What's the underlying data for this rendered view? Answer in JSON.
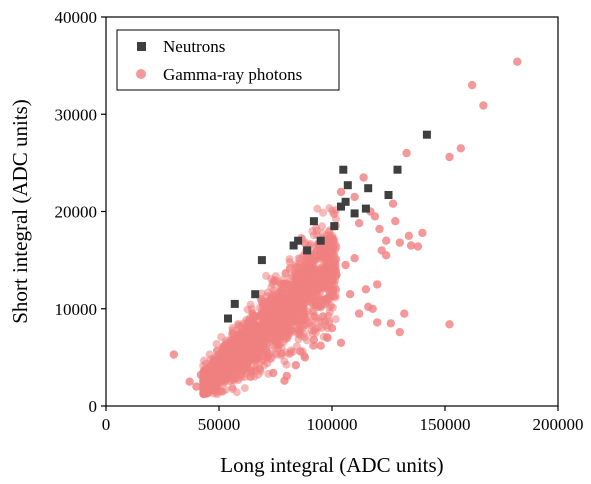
{
  "chart_data": {
    "type": "scatter",
    "title": "",
    "xlabel": "Long integral (ADC units)",
    "ylabel": "Short integral (ADC units)",
    "xlim": [
      0,
      200000
    ],
    "ylim": [
      0,
      40000
    ],
    "xticks": [
      0,
      50000,
      100000,
      150000,
      200000
    ],
    "yticks": [
      0,
      10000,
      20000,
      30000,
      40000
    ],
    "grid": false,
    "legend_position": "top-left",
    "series": [
      {
        "name": "Neutrons",
        "marker": "square",
        "color": "#3f3f3f",
        "points": [
          [
            54000,
            9000
          ],
          [
            57000,
            10500
          ],
          [
            66000,
            11500
          ],
          [
            69000,
            15000
          ],
          [
            83000,
            16500
          ],
          [
            85000,
            17000
          ],
          [
            89000,
            16000
          ],
          [
            92000,
            19000
          ],
          [
            95000,
            17000
          ],
          [
            101000,
            18500
          ],
          [
            104000,
            20500
          ],
          [
            105000,
            24300
          ],
          [
            106000,
            21000
          ],
          [
            107000,
            22700
          ],
          [
            110000,
            19800
          ],
          [
            115000,
            20300
          ],
          [
            116000,
            22400
          ],
          [
            125000,
            21700
          ],
          [
            129000,
            24300
          ],
          [
            142000,
            27900
          ]
        ]
      },
      {
        "name": "Gamma-ray photons",
        "marker": "circle",
        "color": "#f08080",
        "cluster": {
          "x_range": [
            43000,
            102000
          ],
          "slope": 0.215,
          "intercept": -7200,
          "spread": 2200,
          "count": 2200
        },
        "points": [
          [
            30000,
            5300
          ],
          [
            37000,
            2500
          ],
          [
            40000,
            2000
          ],
          [
            42000,
            3200
          ],
          [
            58000,
            4500
          ],
          [
            64000,
            3000
          ],
          [
            68000,
            3800
          ],
          [
            74000,
            3400
          ],
          [
            79000,
            2600
          ],
          [
            84000,
            4200
          ],
          [
            88000,
            5000
          ],
          [
            95000,
            6200
          ],
          [
            98000,
            7000
          ],
          [
            104000,
            6500
          ],
          [
            108000,
            11500
          ],
          [
            112000,
            9500
          ],
          [
            115000,
            12000
          ],
          [
            118000,
            10000
          ],
          [
            120000,
            12500
          ],
          [
            122000,
            16000
          ],
          [
            124000,
            15500
          ],
          [
            126000,
            8500
          ],
          [
            130000,
            7600
          ],
          [
            132000,
            9500
          ],
          [
            135000,
            16500
          ],
          [
            140000,
            17800
          ],
          [
            152000,
            8400
          ],
          [
            104000,
            22000
          ],
          [
            110000,
            21500
          ],
          [
            112000,
            18800
          ],
          [
            114000,
            23500
          ],
          [
            117000,
            20000
          ],
          [
            119000,
            19500
          ],
          [
            121000,
            18200
          ],
          [
            124000,
            17000
          ],
          [
            127000,
            20800
          ],
          [
            128000,
            19000
          ],
          [
            130000,
            16800
          ],
          [
            133000,
            26000
          ],
          [
            134000,
            17500
          ],
          [
            138000,
            16400
          ],
          [
            152000,
            25600
          ],
          [
            157000,
            26500
          ],
          [
            162000,
            33000
          ],
          [
            167000,
            30900
          ],
          [
            182000,
            35400
          ],
          [
            120000,
            8600
          ],
          [
            116000,
            10200
          ],
          [
            102000,
            13500
          ],
          [
            106000,
            14500
          ],
          [
            110000,
            15200
          ],
          [
            100000,
            8000
          ],
          [
            96000,
            9200
          ],
          [
            92000,
            6800
          ],
          [
            86000,
            5600
          ],
          [
            80000,
            3100
          ]
        ]
      }
    ]
  }
}
